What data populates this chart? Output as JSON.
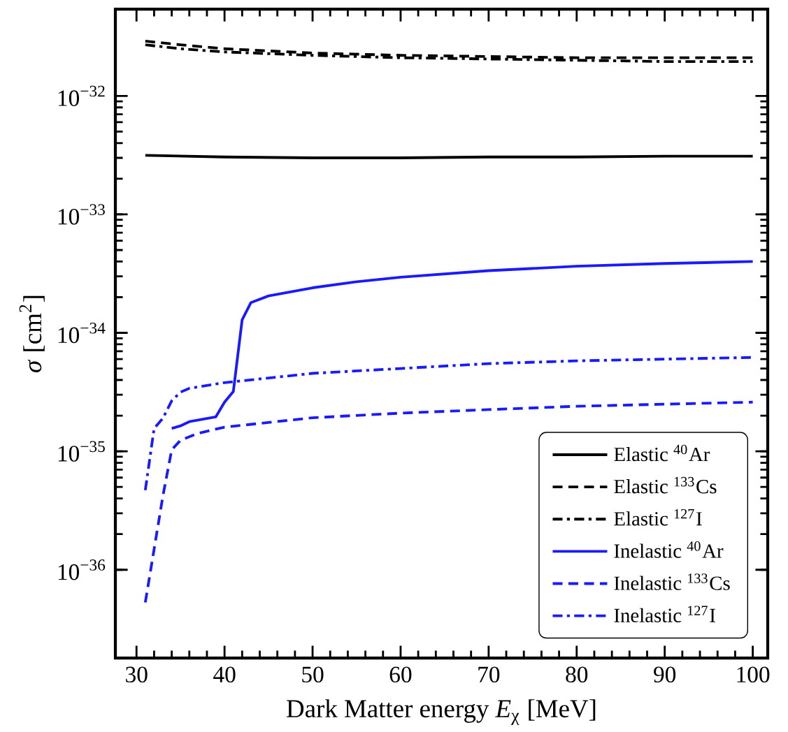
{
  "chart_data": {
    "type": "line",
    "xlabel": "Dark Matter energy *E*$_{χ}$ [MeV]",
    "ylabel": "*σ* [cm$^{2}$]",
    "log": "y",
    "xlim": [
      27.6,
      101.7
    ],
    "ylim": [
      1.8e-37,
      5.4e-32
    ],
    "xticks": [
      30,
      40,
      50,
      60,
      70,
      80,
      90,
      100
    ],
    "yticks": [
      {
        "value": 1e-36,
        "label": "10$^{−36}$"
      },
      {
        "value": 1e-35,
        "label": "10$^{−35}$"
      },
      {
        "value": 1e-34,
        "label": "10$^{−34}$"
      },
      {
        "value": 1e-33,
        "label": "10$^{−33}$"
      },
      {
        "value": 1e-32,
        "label": "10$^{−32}$"
      }
    ],
    "legend": "bottom right",
    "series": [
      {
        "name": "Elastic $^{40}$Ar",
        "color": "#000000",
        "line_style": "solid",
        "x": [
          31,
          40,
          50,
          60,
          70,
          80,
          90,
          100
        ],
        "values": [
          3.15e-33,
          3.05e-33,
          3e-33,
          3e-33,
          3.05e-33,
          3.05e-33,
          3.1e-33,
          3.1e-33
        ]
      },
      {
        "name": "Elastic $^{133}$Cs",
        "color": "#000000",
        "line_style": "dashed",
        "x": [
          31,
          35,
          40,
          50,
          60,
          70,
          80,
          90,
          100
        ],
        "values": [
          2.9e-32,
          2.7e-32,
          2.5e-32,
          2.3e-32,
          2.2e-32,
          2.15e-32,
          2.1e-32,
          2.1e-32,
          2.1e-32
        ]
      },
      {
        "name": "Elastic $^{127}$I",
        "color": "#000000",
        "line_style": "dashdot",
        "x": [
          31,
          35,
          40,
          50,
          60,
          70,
          80,
          90,
          100
        ],
        "values": [
          2.7e-32,
          2.5e-32,
          2.35e-32,
          2.2e-32,
          2.1e-32,
          2.05e-32,
          2e-32,
          1.95e-32,
          1.95e-32
        ]
      },
      {
        "name": "Inelastic $^{40}$Ar",
        "color": "#1a1aff",
        "line_style": "solid",
        "x": [
          34,
          35,
          36,
          39,
          40,
          41,
          42,
          43,
          45,
          50,
          55,
          60,
          70,
          80,
          90,
          100
        ],
        "values": [
          1.56e-35,
          1.64e-35,
          1.78e-35,
          1.95e-35,
          2.6e-35,
          3.2e-35,
          1.29e-34,
          1.8e-34,
          2.05e-34,
          2.4e-34,
          2.7e-34,
          2.95e-34,
          3.35e-34,
          3.65e-34,
          3.85e-34,
          4e-34
        ]
      },
      {
        "name": "Inelastic $^{133}$Cs",
        "color": "#1a1aff",
        "line_style": "dashed",
        "x": [
          31,
          33,
          34,
          35,
          37,
          40,
          50,
          60,
          70,
          80,
          90,
          100
        ],
        "values": [
          5.3e-37,
          4.2e-36,
          1.03e-35,
          1.24e-35,
          1.42e-35,
          1.6e-35,
          1.92e-35,
          2.1e-35,
          2.25e-35,
          2.4e-35,
          2.5e-35,
          2.6e-35
        ]
      },
      {
        "name": "Inelastic $^{127}$I",
        "color": "#1a1aff",
        "line_style": "dashdot",
        "x": [
          31,
          32,
          33,
          34,
          35,
          36,
          40,
          50,
          60,
          70,
          80,
          90,
          100
        ],
        "values": [
          4.7e-36,
          1.56e-35,
          1.9e-35,
          2.67e-35,
          3.16e-35,
          3.4e-35,
          3.8e-35,
          4.55e-35,
          5e-35,
          5.5e-35,
          5.8e-35,
          6e-35,
          6.2e-35
        ]
      }
    ]
  }
}
